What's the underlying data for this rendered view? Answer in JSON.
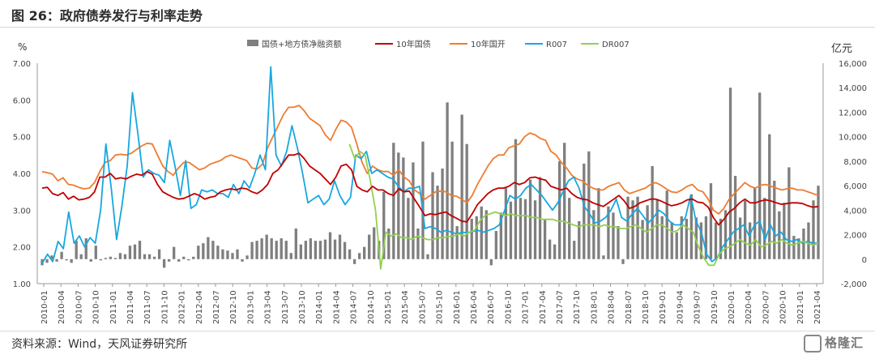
{
  "header": {
    "title": "图 26：政府债券发行与利率走势"
  },
  "footer": {
    "source": "资料来源：Wind，天风证券研究所",
    "watermark": "格隆汇"
  },
  "colors": {
    "bars": "#7f7f7f",
    "cgb10": "#c00000",
    "cdb10": "#ed7d31",
    "r007": "#18a7e0",
    "dr007": "#92d050"
  },
  "chart_data": {
    "type": "line",
    "left_axis": {
      "unit": "%",
      "ticks": [
        "1.00",
        "2.00",
        "3.00",
        "4.00",
        "5.00",
        "6.00",
        "7.00"
      ],
      "min": 1,
      "max": 7
    },
    "right_axis": {
      "unit": "亿元",
      "ticks": [
        "-2,000",
        "0",
        "2,000",
        "4,000",
        "6,000",
        "8,000",
        "10,000",
        "12,000",
        "14,000",
        "16,000"
      ],
      "min": -2000,
      "max": 16000
    },
    "x_ticks": [
      "2010-01",
      "2010-04",
      "2010-07",
      "2010-10",
      "2011-01",
      "2011-04",
      "2011-07",
      "2011-10",
      "2012-01",
      "2012-04",
      "2012-07",
      "2012-10",
      "2013-01",
      "2013-04",
      "2013-07",
      "2013-10",
      "2014-01",
      "2014-04",
      "2014-07",
      "2014-10",
      "2015-01",
      "2015-04",
      "2015-07",
      "2015-10",
      "2016-01",
      "2016-04",
      "2016-07",
      "2016-10",
      "2017-01",
      "2017-04",
      "2017-07",
      "2017-10",
      "2018-01",
      "2018-04",
      "2018-07",
      "2018-10",
      "2019-01",
      "2019-04",
      "2019-07",
      "2019-10",
      "2020-01",
      "2020-04",
      "2020-07",
      "2020-10",
      "2021-01",
      "2021-04"
    ],
    "legend": [
      "国债+地方债净融资额",
      "10年国债",
      "10年国开",
      "R007",
      "DR007"
    ],
    "legend_position": "top",
    "series": [
      {
        "name": "国债+地方债净融资额",
        "axis": "right",
        "kind": "bar",
        "values": [
          -500,
          -300,
          300,
          -200,
          600,
          -100,
          -300,
          1500,
          400,
          1700,
          -200,
          1100,
          -100,
          100,
          200,
          100,
          500,
          400,
          1100,
          1200,
          1500,
          400,
          400,
          200,
          800,
          -700,
          -200,
          1000,
          -200,
          200,
          -100,
          200,
          1100,
          1300,
          1800,
          1500,
          1100,
          800,
          700,
          500,
          800,
          -200,
          300,
          1400,
          1500,
          1700,
          2000,
          1700,
          1500,
          1700,
          1500,
          500,
          2500,
          1200,
          1500,
          1700,
          1500,
          1500,
          1600,
          2200,
          1600,
          2000,
          1400,
          800,
          -400,
          500,
          1000,
          2000,
          2600,
          1500,
          5500,
          2500,
          9500,
          8700,
          8300,
          5000,
          7900,
          2500,
          9600,
          400,
          7100,
          6000,
          7400,
          12800,
          9600,
          2700,
          11800,
          9400,
          3300,
          3500,
          4300,
          4000,
          -500,
          2300,
          3800,
          5800,
          4700,
          9800,
          5000,
          4900,
          6500,
          4800,
          6700,
          3200,
          1600,
          1200,
          8000,
          9500,
          5000,
          1500,
          3100,
          7800,
          8800,
          4000,
          5800,
          300,
          4300,
          3800,
          2700,
          -400,
          5100,
          4800,
          5100,
          3200,
          4400,
          7600,
          4900,
          3500,
          5600,
          3000,
          2200,
          3500,
          3300,
          5300,
          3400,
          3000,
          3500,
          6200,
          3000,
          3300,
          4000,
          14000,
          6800,
          3400,
          4800,
          3000,
          5800,
          13600,
          5000,
          10200,
          6400,
          3900,
          4600,
          7500,
          1900,
          1700,
          2500,
          3000,
          4800,
          6000
        ]
      },
      {
        "name": "10年国债",
        "axis": "left",
        "values": [
          3.6,
          3.62,
          3.45,
          3.4,
          3.48,
          3.3,
          3.38,
          3.28,
          3.3,
          3.35,
          3.5,
          3.9,
          3.9,
          4.0,
          3.85,
          3.88,
          3.85,
          3.92,
          3.98,
          3.95,
          4.05,
          3.98,
          3.7,
          3.5,
          3.42,
          3.35,
          3.3,
          3.32,
          3.38,
          3.45,
          3.4,
          3.3,
          3.35,
          3.38,
          3.5,
          3.55,
          3.58,
          3.55,
          3.6,
          3.58,
          3.5,
          3.45,
          3.55,
          3.7,
          4.0,
          4.1,
          4.3,
          4.5,
          4.5,
          4.55,
          4.4,
          4.2,
          4.1,
          4.0,
          3.85,
          3.7,
          3.9,
          4.2,
          4.25,
          4.1,
          3.65,
          3.55,
          3.5,
          3.65,
          3.55,
          3.55,
          3.45,
          3.4,
          3.58,
          3.5,
          3.52,
          3.3,
          3.08,
          2.85,
          2.9,
          2.88,
          2.92,
          2.95,
          2.85,
          2.78,
          2.7,
          2.68,
          2.9,
          3.15,
          3.3,
          3.45,
          3.55,
          3.6,
          3.6,
          3.65,
          3.75,
          3.7,
          3.75,
          3.88,
          3.9,
          3.85,
          3.82,
          3.65,
          3.6,
          3.55,
          3.6,
          3.45,
          3.35,
          3.3,
          3.28,
          3.2,
          3.15,
          3.1,
          3.2,
          3.3,
          3.4,
          3.25,
          3.05,
          3.1,
          3.2,
          3.25,
          3.3,
          3.3,
          3.25,
          3.18,
          3.12,
          3.15,
          3.2,
          3.28,
          3.3,
          3.22,
          3.2,
          3.08,
          2.8,
          2.6,
          2.75,
          2.95,
          3.05,
          3.2,
          3.3,
          3.2,
          3.2,
          3.25,
          3.28,
          3.25,
          3.2,
          3.16,
          3.18,
          3.2,
          3.2,
          3.18,
          3.12,
          3.08,
          3.1
        ]
      },
      {
        "name": "10年国开",
        "axis": "left",
        "values": [
          4.05,
          4.02,
          3.98,
          3.8,
          3.88,
          3.7,
          3.68,
          3.62,
          3.58,
          3.6,
          3.75,
          4.05,
          4.3,
          4.35,
          4.5,
          4.52,
          4.5,
          4.55,
          4.65,
          4.75,
          4.82,
          4.8,
          4.5,
          4.2,
          4.05,
          3.95,
          4.15,
          4.3,
          4.3,
          4.2,
          4.1,
          4.15,
          4.25,
          4.3,
          4.35,
          4.45,
          4.5,
          4.45,
          4.4,
          4.35,
          4.15,
          4.12,
          4.25,
          4.7,
          5.0,
          5.3,
          5.6,
          5.8,
          5.8,
          5.85,
          5.7,
          5.5,
          5.4,
          5.3,
          5.05,
          4.9,
          5.2,
          5.45,
          5.4,
          5.25,
          4.8,
          4.3,
          4.0,
          4.2,
          4.1,
          4.05,
          4.05,
          3.95,
          4.1,
          3.9,
          3.8,
          3.55,
          3.45,
          3.3,
          3.4,
          3.5,
          3.52,
          3.5,
          3.4,
          3.38,
          3.3,
          3.2,
          3.4,
          3.7,
          3.95,
          4.2,
          4.4,
          4.5,
          4.5,
          4.7,
          4.75,
          4.8,
          5.0,
          5.1,
          5.05,
          4.95,
          4.9,
          4.6,
          4.5,
          4.3,
          4.15,
          3.95,
          3.85,
          3.8,
          3.68,
          3.6,
          3.55,
          3.55,
          3.65,
          3.7,
          3.75,
          3.55,
          3.45,
          3.5,
          3.55,
          3.6,
          3.7,
          3.75,
          3.68,
          3.58,
          3.5,
          3.48,
          3.55,
          3.65,
          3.7,
          3.55,
          3.5,
          3.3,
          3.0,
          2.9,
          3.05,
          3.3,
          3.45,
          3.6,
          3.75,
          3.65,
          3.6,
          3.68,
          3.7,
          3.65,
          3.6,
          3.55,
          3.58,
          3.6,
          3.55,
          3.55,
          3.5,
          3.45,
          3.4
        ]
      },
      {
        "name": "R007",
        "axis": "left",
        "values": [
          1.55,
          1.8,
          1.6,
          2.15,
          1.95,
          2.95,
          2.1,
          2.3,
          2.0,
          2.25,
          2.1,
          3.0,
          4.8,
          3.6,
          2.2,
          3.1,
          4.2,
          6.2,
          5.1,
          3.9,
          4.1,
          4.0,
          3.95,
          3.75,
          4.9,
          4.2,
          3.4,
          4.35,
          3.05,
          3.15,
          3.55,
          3.5,
          3.55,
          3.45,
          3.45,
          3.35,
          3.7,
          3.45,
          3.8,
          3.6,
          4.0,
          4.5,
          4.1,
          6.9,
          4.5,
          4.2,
          4.6,
          5.3,
          4.7,
          4.0,
          3.2,
          3.3,
          3.4,
          3.15,
          3.3,
          3.8,
          3.4,
          3.15,
          3.35,
          4.5,
          4.4,
          4.6,
          4.0,
          4.1,
          4.0,
          3.9,
          3.85,
          3.65,
          3.5,
          3.6,
          3.6,
          3.65,
          2.5,
          2.55,
          2.5,
          2.4,
          2.45,
          2.4,
          2.35,
          2.4,
          2.38,
          2.42,
          2.45,
          2.4,
          2.45,
          2.5,
          2.6,
          3.0,
          3.4,
          3.3,
          3.4,
          3.6,
          3.7,
          3.55,
          3.4,
          3.2,
          3.0,
          3.2,
          3.5,
          3.8,
          3.9,
          3.6,
          3.1,
          2.9,
          2.65,
          2.7,
          2.8,
          3.0,
          3.3,
          2.8,
          2.7,
          2.9,
          3.05,
          2.85,
          2.65,
          2.8,
          3.0,
          2.9,
          2.7,
          2.6,
          2.6,
          2.8,
          3.4,
          2.7,
          2.4,
          1.8,
          1.6,
          1.7,
          2.0,
          2.2,
          2.4,
          2.5,
          2.6,
          2.3,
          2.6,
          2.7,
          2.2,
          2.6,
          2.3,
          2.4,
          2.2,
          2.15,
          2.2,
          2.1,
          2.15,
          2.1,
          2.1
        ]
      },
      {
        "name": "DR007",
        "axis": "left",
        "values": [
          null,
          null,
          null,
          null,
          null,
          null,
          null,
          null,
          null,
          null,
          null,
          null,
          null,
          null,
          null,
          null,
          null,
          null,
          null,
          null,
          null,
          null,
          null,
          null,
          null,
          null,
          null,
          null,
          null,
          null,
          null,
          null,
          null,
          null,
          null,
          null,
          null,
          null,
          null,
          null,
          null,
          null,
          null,
          null,
          null,
          null,
          null,
          null,
          null,
          null,
          null,
          null,
          null,
          null,
          null,
          null,
          null,
          null,
          null,
          4.8,
          4.4,
          4.6,
          4.5,
          3.8,
          3.0,
          1.4,
          2.4,
          2.3,
          2.35,
          2.25,
          2.25,
          2.2,
          2.3,
          2.25,
          2.2,
          2.2,
          2.25,
          2.25,
          2.28,
          2.3,
          2.35,
          2.3,
          2.4,
          2.45,
          2.7,
          2.85,
          2.9,
          2.95,
          2.9,
          2.85,
          2.9,
          2.85,
          2.85,
          2.85,
          2.8,
          2.8,
          2.75,
          2.75,
          2.75,
          2.7,
          2.7,
          2.65,
          2.6,
          2.55,
          2.6,
          2.6,
          2.6,
          2.55,
          2.6,
          2.55,
          2.55,
          2.5,
          2.5,
          2.55,
          2.6,
          2.5,
          2.4,
          2.5,
          2.6,
          2.6,
          2.5,
          2.4,
          2.45,
          2.6,
          2.5,
          2.4,
          2.0,
          1.7,
          1.5,
          1.5,
          1.8,
          1.95,
          2.0,
          2.1,
          2.2,
          2.1,
          2.05,
          2.2,
          2.0,
          2.05,
          2.15,
          2.1,
          2.2,
          2.1,
          2.05,
          2.1,
          2.15,
          2.1,
          2.05,
          2.1
        ]
      }
    ]
  }
}
